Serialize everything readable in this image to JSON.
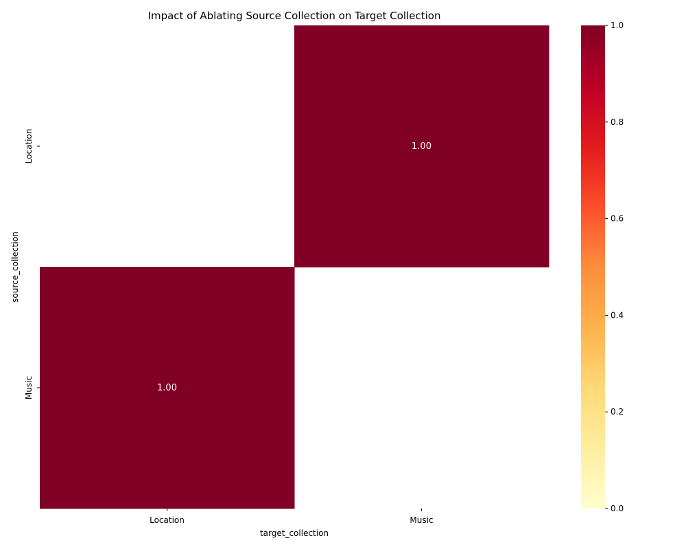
{
  "chart_data": {
    "type": "heatmap",
    "title": "Impact of Ablating Source Collection on Target Collection",
    "xlabel": "target_collection",
    "ylabel": "source_collection",
    "x_categories": [
      "Location",
      "Music"
    ],
    "y_categories": [
      "Location",
      "Music"
    ],
    "values": [
      [
        null,
        1.0
      ],
      [
        1.0,
        null
      ]
    ],
    "value_labels": [
      [
        "",
        "1.00"
      ],
      [
        "1.00",
        ""
      ]
    ],
    "colormap": "YlOrRd",
    "color_range": [
      0,
      1
    ],
    "colorbar_ticks": [
      "0.0",
      "0.2",
      "0.4",
      "0.6",
      "0.8",
      "1.0"
    ]
  }
}
